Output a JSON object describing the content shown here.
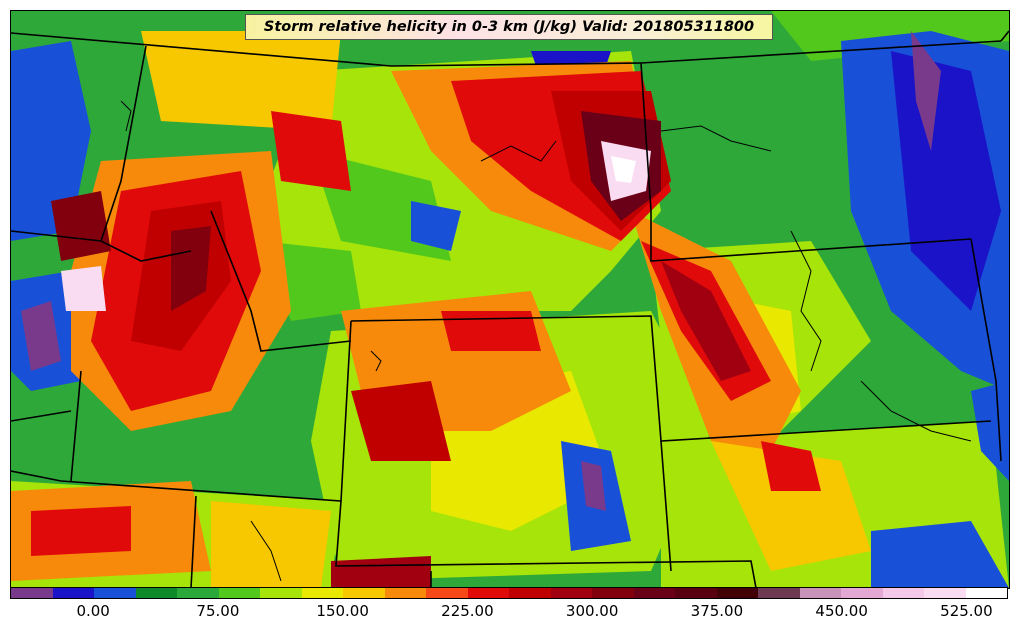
{
  "title": "Storm relative helicity in 0-3 km (J/kg) Valid: 201805311800",
  "colorbar": {
    "colors": [
      "#7a3a8c",
      "#1a13c8",
      "#1850d8",
      "#0e8a2a",
      "#2aa83a",
      "#52c81c",
      "#a6e40a",
      "#e8e800",
      "#f7c800",
      "#f78a0a",
      "#f74818",
      "#e00a0a",
      "#c00000",
      "#a00010",
      "#82000e",
      "#6a0018",
      "#580010",
      "#420006",
      "#6e3a52",
      "#c893b8",
      "#e4a8d4",
      "#f4c8e8",
      "#fadcf2",
      "#ffffff"
    ],
    "tick_labels": [
      "0.00",
      "75.00",
      "150.00",
      "225.00",
      "300.00",
      "375.00",
      "450.00",
      "525.00"
    ]
  },
  "colors": {
    "background": "#2fa83a",
    "high": "#c00000",
    "max": "#fadcf2",
    "low": "#1850d8"
  }
}
